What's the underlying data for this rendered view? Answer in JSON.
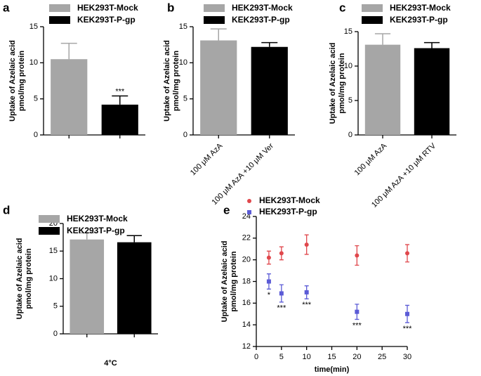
{
  "chart_data": [
    {
      "type": "bar",
      "panel": "a",
      "ylabel": [
        "Uptake of Azelaic acid",
        "pmol/mg protein"
      ],
      "categories": [
        null,
        null
      ],
      "values": [
        10.5,
        4.2
      ],
      "errors": [
        2.2,
        1.2
      ],
      "colors": [
        "#a6a6a6",
        "#000000"
      ],
      "legend": [
        "HEK293T-Mock",
        "KEK293T-P-gp"
      ],
      "significance": [
        null,
        "***"
      ],
      "ylim": [
        0,
        15
      ],
      "yticks": [
        0,
        5,
        10,
        15
      ]
    },
    {
      "type": "bar",
      "panel": "b",
      "ylabel": [
        "Uptake of Azelaic acid",
        "pmol/mg protein"
      ],
      "categories": [
        "100 μM AzA",
        "100 μM AzA +10 μM Ver"
      ],
      "values": [
        13.1,
        12.2
      ],
      "errors": [
        1.6,
        0.6
      ],
      "colors": [
        "#a6a6a6",
        "#000000"
      ],
      "legend": [
        "HEK293T-Mock",
        "KEK293T-P-gp"
      ],
      "ylim": [
        0,
        15
      ],
      "yticks": [
        0,
        5,
        10,
        15
      ]
    },
    {
      "type": "bar",
      "panel": "c",
      "ylabel": [
        "Uptake of Azelaic acid",
        "pmol/mg protein"
      ],
      "categories": [
        "100 μM AzA",
        "100 μM AzA +10 μM RTV"
      ],
      "values": [
        13.1,
        12.6
      ],
      "errors": [
        1.6,
        0.8
      ],
      "colors": [
        "#a6a6a6",
        "#000000"
      ],
      "legend": [
        "HEK293T-Mock",
        "KEK293T-P-gp"
      ],
      "ylim": [
        0,
        15
      ],
      "yticks": [
        0,
        5,
        10,
        15
      ]
    },
    {
      "type": "bar",
      "panel": "d",
      "ylabel": [
        "Uptake of Azelaic acid",
        "pmol/mg protein"
      ],
      "xlabel": "4°C",
      "categories": [
        null,
        null
      ],
      "values": [
        17.1,
        16.6
      ],
      "errors": [
        1.2,
        1.2
      ],
      "colors": [
        "#a6a6a6",
        "#000000"
      ],
      "legend": [
        "HEK293T-Mock",
        "KEK293T-P-gp"
      ],
      "ylim": [
        0,
        20
      ],
      "yticks": [
        0,
        5,
        10,
        15,
        20
      ]
    },
    {
      "type": "scatter",
      "panel": "e",
      "ylabel": [
        "Uptake of Azelaic acid",
        "pmol/mg protein"
      ],
      "xlabel": "time(min)",
      "x": [
        2.5,
        5,
        10,
        20,
        30
      ],
      "series": [
        {
          "name": "HEK293T-Mock",
          "color": "#e0474c",
          "marker": "circle",
          "values": [
            20.2,
            20.6,
            21.4,
            20.4,
            20.6
          ],
          "errors": [
            0.6,
            0.6,
            0.9,
            0.9,
            0.8
          ]
        },
        {
          "name": "HEK293T-P-gp",
          "color": "#5b5bd6",
          "marker": "square",
          "values": [
            18.0,
            16.9,
            17.0,
            15.2,
            15.0
          ],
          "errors": [
            0.7,
            0.8,
            0.6,
            0.7,
            0.8
          ],
          "significance": [
            "*",
            "***",
            "***",
            "***",
            "***"
          ]
        }
      ],
      "xlim": [
        0,
        30
      ],
      "xticks": [
        0,
        5,
        10,
        15,
        20,
        25,
        30
      ],
      "ylim": [
        12,
        24
      ],
      "yticks": [
        12,
        14,
        16,
        18,
        20,
        22,
        24
      ]
    }
  ]
}
